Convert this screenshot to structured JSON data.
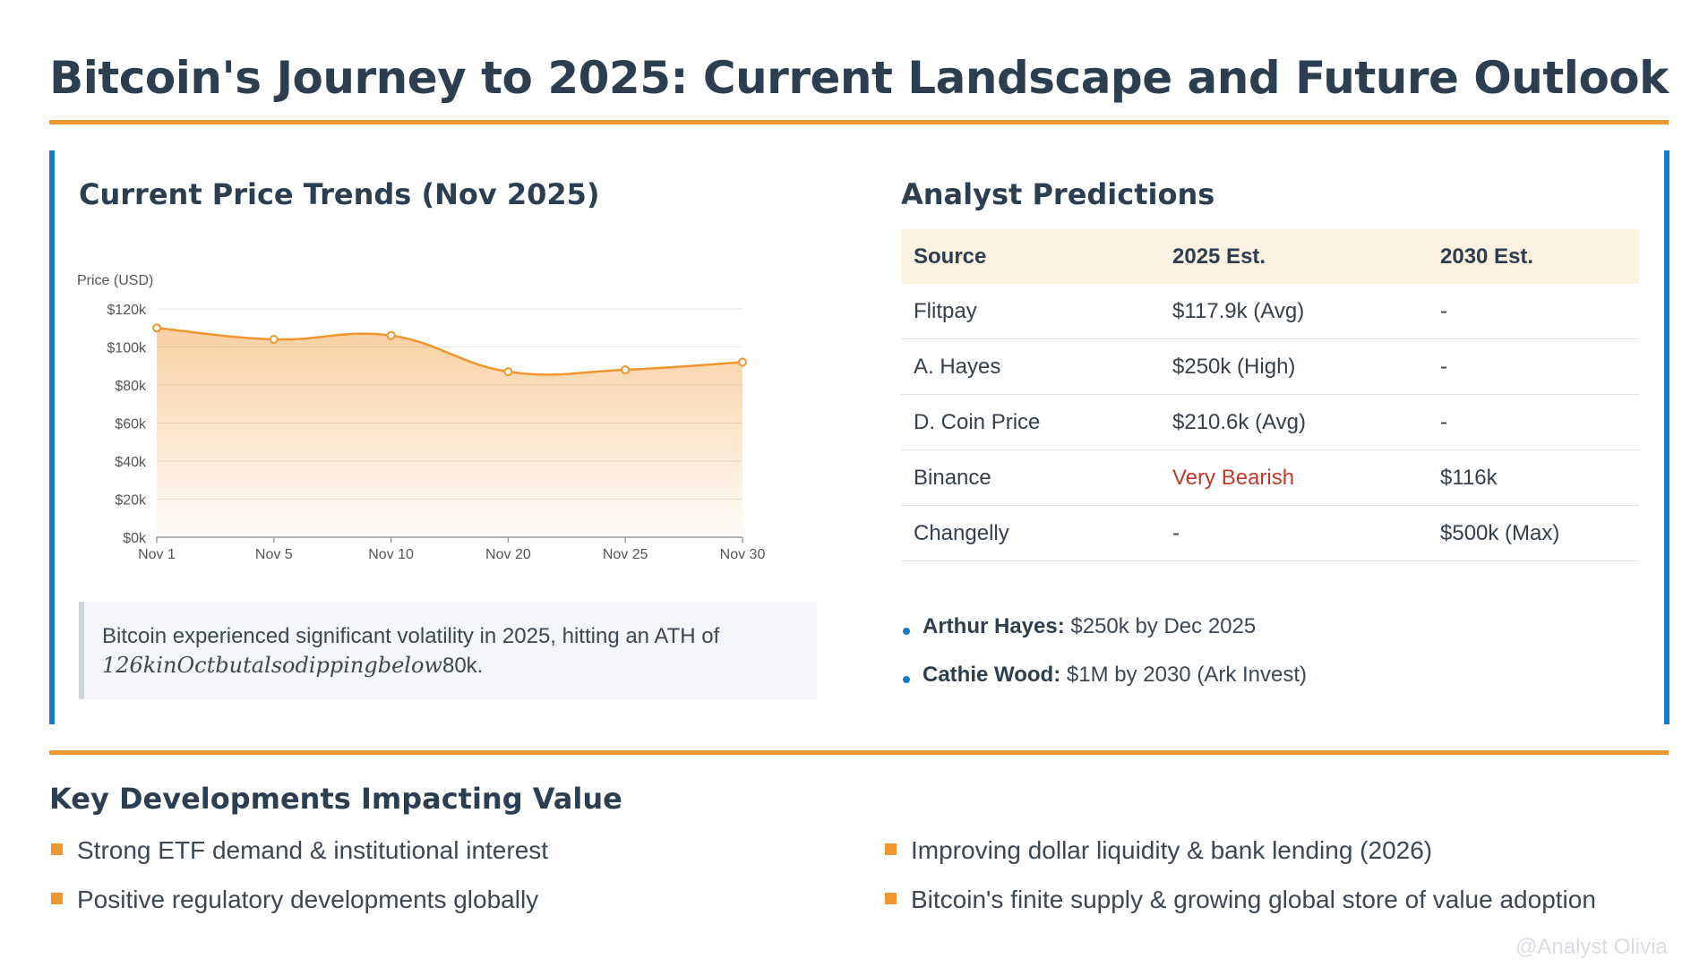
{
  "title": "Bitcoin's Journey to 2025: Current Landscape and Future Outlook",
  "price_section": {
    "heading": "Current Price Trends (Nov 2025)",
    "note_prefix": "Bitcoin experienced significant volatility in 2025, hitting an ATH of",
    "note_math": "126kinOctbutalsodippingbelow",
    "note_suffix": "80k."
  },
  "chart_data": {
    "type": "line",
    "title": "",
    "xlabel": "",
    "ylabel": "Price (USD)",
    "categories": [
      "Nov 1",
      "Nov 5",
      "Nov 10",
      "Nov 20",
      "Nov 25",
      "Nov 30"
    ],
    "values": [
      110,
      104,
      106,
      87,
      88,
      92
    ],
    "ylim": [
      0,
      120
    ],
    "yticks": [
      "$0k",
      "$20k",
      "$40k",
      "$60k",
      "$80k",
      "$100k",
      "$120k"
    ],
    "grid": true,
    "line_color": "#f0962e",
    "fill": "area gradient"
  },
  "predictions": {
    "heading": "Analyst Predictions",
    "columns": [
      "Source",
      "2025 Est.",
      "2030 Est."
    ],
    "rows": [
      [
        "Flitpay",
        "$117.9k (Avg)",
        "-"
      ],
      [
        "A. Hayes",
        "$250k (High)",
        "-"
      ],
      [
        "D. Coin Price",
        "$210.6k (Avg)",
        "-"
      ],
      [
        "Binance",
        "Very Bearish",
        "$116k"
      ],
      [
        "Changelly",
        "-",
        "$500k (Max)"
      ]
    ],
    "quotes": [
      {
        "name": "Arthur Hayes:",
        "text": "$250k by Dec 2025"
      },
      {
        "name": "Cathie Wood:",
        "text": "$1M by 2030 (Ark Invest)"
      }
    ]
  },
  "developments": {
    "heading": "Key Developments Impacting Value",
    "items": [
      "Strong ETF demand & institutional interest",
      "Improving dollar liquidity & bank lending (2026)",
      "Positive regulatory developments globally",
      "Bitcoin's finite supply & growing global store of value adoption"
    ]
  },
  "watermark": "@Analyst Olivia",
  "colors": {
    "accent_orange": "#f0962e",
    "accent_blue": "#1a7ac8",
    "heading": "#2c3e50",
    "bearish": "#c0392b"
  }
}
